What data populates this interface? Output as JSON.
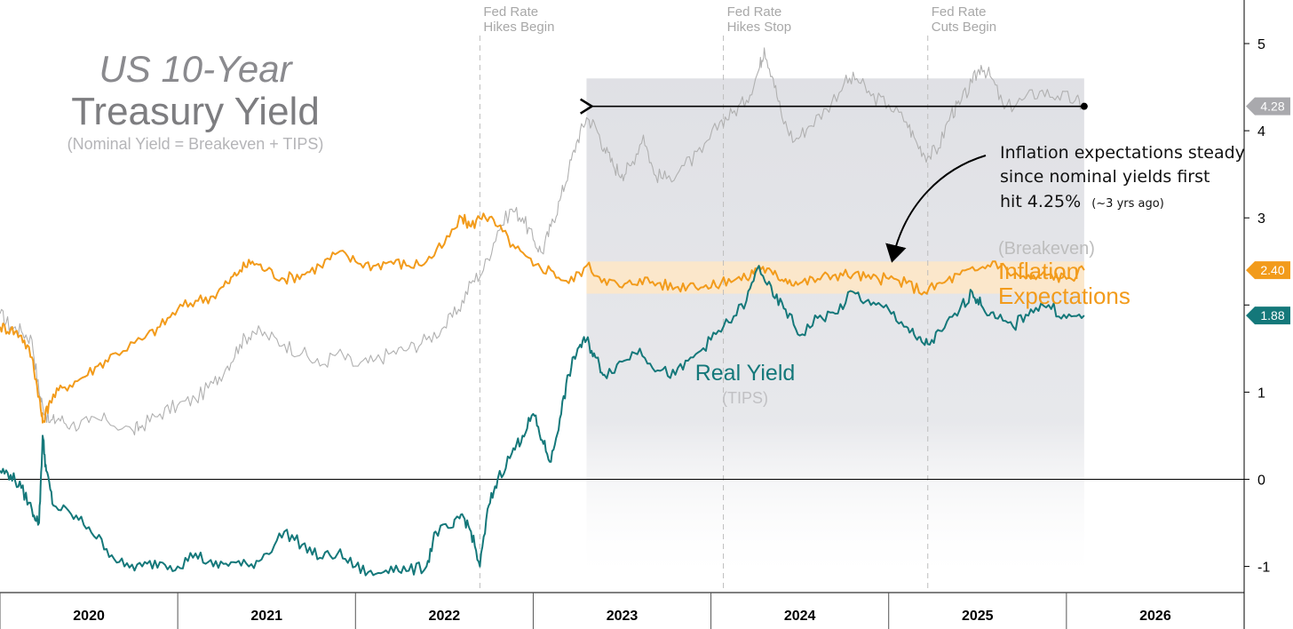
{
  "chart_data": {
    "type": "line",
    "title": "US 10-Year",
    "title_line2": "Treasury Yield",
    "subtitle": "(Nominal Yield = Breakeven + TIPS)",
    "x_tick_labels": [
      "2020",
      "2021",
      "2022",
      "2023",
      "2024",
      "2025",
      "2026"
    ],
    "x_range": [
      2019.5,
      2026.5
    ],
    "y_ticks": [
      -1,
      0,
      1,
      2,
      3,
      4,
      5
    ],
    "y_tick_labels": [
      "-1",
      "0",
      "1",
      "",
      "3",
      "4",
      "5"
    ],
    "ylim": [
      -1.3,
      5.5
    ],
    "zero_line": 0,
    "events": [
      {
        "label_line1": "Fed Rate",
        "label_line2": "Hikes Begin",
        "x": 2022.2
      },
      {
        "label_line1": "Fed Rate",
        "label_line2": "Hikes Stop",
        "x": 2023.57
      },
      {
        "label_line1": "Fed Rate",
        "label_line2": "Cuts Begin",
        "x": 2024.72
      }
    ],
    "shaded_region": {
      "x_start": 2022.8,
      "x_end": 2025.6
    },
    "breakeven_band": {
      "y_low": 2.13,
      "y_high": 2.5,
      "x_start": 2022.8,
      "x_end": 2025.6
    },
    "reference_arrow": {
      "y": 4.28,
      "x_start": 2025.6,
      "x_end": 2022.8
    },
    "annotation": {
      "line1": "Inflation expectations steady",
      "line2": "since nominal yields first",
      "line3": "hit 4.25%",
      "line3_small": "(~3 yrs ago)"
    },
    "series": [
      {
        "name": "Nominal Yield",
        "color": "#b0b0b0",
        "end_label": "4.28",
        "points": [
          [
            2019.5,
            1.9
          ],
          [
            2019.56,
            1.75
          ],
          [
            2019.62,
            1.7
          ],
          [
            2019.68,
            1.6
          ],
          [
            2019.72,
            1.0
          ],
          [
            2019.74,
            0.85
          ],
          [
            2019.78,
            0.65
          ],
          [
            2019.83,
            0.7
          ],
          [
            2019.9,
            0.62
          ],
          [
            2020.0,
            0.65
          ],
          [
            2020.1,
            0.68
          ],
          [
            2020.25,
            0.55
          ],
          [
            2020.3,
            0.62
          ],
          [
            2020.4,
            0.75
          ],
          [
            2020.5,
            0.85
          ],
          [
            2020.6,
            0.92
          ],
          [
            2020.7,
            1.1
          ],
          [
            2020.78,
            1.3
          ],
          [
            2020.85,
            1.55
          ],
          [
            2020.92,
            1.7
          ],
          [
            2021.0,
            1.65
          ],
          [
            2021.1,
            1.55
          ],
          [
            2021.2,
            1.45
          ],
          [
            2021.3,
            1.3
          ],
          [
            2021.4,
            1.45
          ],
          [
            2021.5,
            1.3
          ],
          [
            2021.6,
            1.35
          ],
          [
            2021.7,
            1.45
          ],
          [
            2021.8,
            1.5
          ],
          [
            2021.9,
            1.6
          ],
          [
            2022.0,
            1.75
          ],
          [
            2022.08,
            1.95
          ],
          [
            2022.15,
            2.25
          ],
          [
            2022.22,
            2.4
          ],
          [
            2022.3,
            2.85
          ],
          [
            2022.38,
            3.1
          ],
          [
            2022.44,
            3.0
          ],
          [
            2022.5,
            2.75
          ],
          [
            2022.55,
            2.6
          ],
          [
            2022.6,
            2.9
          ],
          [
            2022.65,
            3.2
          ],
          [
            2022.7,
            3.55
          ],
          [
            2022.75,
            3.9
          ],
          [
            2022.8,
            4.15
          ],
          [
            2022.85,
            4.05
          ],
          [
            2022.9,
            3.8
          ],
          [
            2022.95,
            3.6
          ],
          [
            2023.0,
            3.5
          ],
          [
            2023.05,
            3.6
          ],
          [
            2023.12,
            3.95
          ],
          [
            2023.18,
            3.5
          ],
          [
            2023.25,
            3.45
          ],
          [
            2023.35,
            3.6
          ],
          [
            2023.45,
            3.75
          ],
          [
            2023.55,
            4.1
          ],
          [
            2023.62,
            4.2
          ],
          [
            2023.7,
            4.35
          ],
          [
            2023.77,
            4.7
          ],
          [
            2023.8,
            4.95
          ],
          [
            2023.85,
            4.6
          ],
          [
            2023.9,
            4.15
          ],
          [
            2023.97,
            3.88
          ],
          [
            2024.05,
            4.05
          ],
          [
            2024.15,
            4.25
          ],
          [
            2024.25,
            4.55
          ],
          [
            2024.32,
            4.6
          ],
          [
            2024.4,
            4.4
          ],
          [
            2024.5,
            4.3
          ],
          [
            2024.6,
            4.1
          ],
          [
            2024.66,
            3.85
          ],
          [
            2024.72,
            3.7
          ],
          [
            2024.78,
            3.8
          ],
          [
            2024.85,
            4.2
          ],
          [
            2024.9,
            4.3
          ],
          [
            2024.97,
            4.55
          ],
          [
            2025.02,
            4.75
          ],
          [
            2025.08,
            4.6
          ],
          [
            2025.15,
            4.25
          ],
          [
            2025.25,
            4.35
          ],
          [
            2025.35,
            4.45
          ],
          [
            2025.45,
            4.4
          ],
          [
            2025.55,
            4.35
          ],
          [
            2025.6,
            4.28
          ]
        ]
      },
      {
        "name": "Inflation Expectations",
        "pre_label": "(Breakeven)",
        "label_line1": "Inflation",
        "label_line2": "Expectations",
        "color": "#f29b1b",
        "end_label": "2.40",
        "points": [
          [
            2019.5,
            1.75
          ],
          [
            2019.56,
            1.72
          ],
          [
            2019.62,
            1.65
          ],
          [
            2019.68,
            1.4
          ],
          [
            2019.72,
            0.95
          ],
          [
            2019.74,
            0.65
          ],
          [
            2019.78,
            0.9
          ],
          [
            2019.85,
            1.05
          ],
          [
            2019.95,
            1.15
          ],
          [
            2020.05,
            1.3
          ],
          [
            2020.15,
            1.45
          ],
          [
            2020.3,
            1.6
          ],
          [
            2020.4,
            1.75
          ],
          [
            2020.5,
            1.95
          ],
          [
            2020.6,
            2.05
          ],
          [
            2020.7,
            2.1
          ],
          [
            2020.78,
            2.25
          ],
          [
            2020.85,
            2.4
          ],
          [
            2020.92,
            2.5
          ],
          [
            2021.0,
            2.4
          ],
          [
            2021.1,
            2.3
          ],
          [
            2021.2,
            2.35
          ],
          [
            2021.3,
            2.45
          ],
          [
            2021.4,
            2.6
          ],
          [
            2021.5,
            2.5
          ],
          [
            2021.6,
            2.45
          ],
          [
            2021.7,
            2.5
          ],
          [
            2021.8,
            2.45
          ],
          [
            2021.9,
            2.5
          ],
          [
            2022.0,
            2.7
          ],
          [
            2022.1,
            3.0
          ],
          [
            2022.15,
            2.9
          ],
          [
            2022.22,
            3.05
          ],
          [
            2022.3,
            2.9
          ],
          [
            2022.4,
            2.65
          ],
          [
            2022.5,
            2.45
          ],
          [
            2022.6,
            2.4
          ],
          [
            2022.7,
            2.25
          ],
          [
            2022.8,
            2.45
          ],
          [
            2022.9,
            2.3
          ],
          [
            2023.0,
            2.2
          ],
          [
            2023.1,
            2.3
          ],
          [
            2023.2,
            2.25
          ],
          [
            2023.3,
            2.2
          ],
          [
            2023.4,
            2.25
          ],
          [
            2023.5,
            2.2
          ],
          [
            2023.6,
            2.3
          ],
          [
            2023.7,
            2.3
          ],
          [
            2023.77,
            2.45
          ],
          [
            2023.85,
            2.35
          ],
          [
            2023.92,
            2.3
          ],
          [
            2024.0,
            2.25
          ],
          [
            2024.1,
            2.3
          ],
          [
            2024.2,
            2.35
          ],
          [
            2024.3,
            2.35
          ],
          [
            2024.4,
            2.3
          ],
          [
            2024.5,
            2.3
          ],
          [
            2024.6,
            2.25
          ],
          [
            2024.7,
            2.15
          ],
          [
            2024.8,
            2.25
          ],
          [
            2024.9,
            2.35
          ],
          [
            2025.0,
            2.4
          ],
          [
            2025.1,
            2.5
          ],
          [
            2025.2,
            2.35
          ],
          [
            2025.3,
            2.3
          ],
          [
            2025.4,
            2.35
          ],
          [
            2025.5,
            2.3
          ],
          [
            2025.6,
            2.4
          ]
        ]
      },
      {
        "name": "Real Yield",
        "sub_label": "(TIPS)",
        "color": "#14787a",
        "end_label": "1.88",
        "points": [
          [
            2019.5,
            0.1
          ],
          [
            2019.56,
            0.05
          ],
          [
            2019.62,
            -0.1
          ],
          [
            2019.68,
            -0.35
          ],
          [
            2019.72,
            -0.5
          ],
          [
            2019.74,
            0.5
          ],
          [
            2019.76,
            0.1
          ],
          [
            2019.8,
            -0.3
          ],
          [
            2019.9,
            -0.4
          ],
          [
            2020.0,
            -0.55
          ],
          [
            2020.1,
            -0.8
          ],
          [
            2020.2,
            -1.0
          ],
          [
            2020.3,
            -1.0
          ],
          [
            2020.4,
            -0.95
          ],
          [
            2020.5,
            -1.0
          ],
          [
            2020.6,
            -0.85
          ],
          [
            2020.7,
            -1.0
          ],
          [
            2020.8,
            -0.95
          ],
          [
            2020.9,
            -1.0
          ],
          [
            2021.0,
            -0.85
          ],
          [
            2021.1,
            -0.6
          ],
          [
            2021.2,
            -0.75
          ],
          [
            2021.3,
            -0.9
          ],
          [
            2021.4,
            -0.85
          ],
          [
            2021.5,
            -1.0
          ],
          [
            2021.6,
            -1.1
          ],
          [
            2021.7,
            -1.0
          ],
          [
            2021.8,
            -1.05
          ],
          [
            2021.9,
            -1.0
          ],
          [
            2021.95,
            -0.6
          ],
          [
            2022.05,
            -0.55
          ],
          [
            2022.1,
            -0.4
          ],
          [
            2022.15,
            -0.6
          ],
          [
            2022.2,
            -1.0
          ],
          [
            2022.25,
            -0.3
          ],
          [
            2022.3,
            0.0
          ],
          [
            2022.38,
            0.3
          ],
          [
            2022.44,
            0.5
          ],
          [
            2022.5,
            0.75
          ],
          [
            2022.55,
            0.45
          ],
          [
            2022.6,
            0.2
          ],
          [
            2022.65,
            0.7
          ],
          [
            2022.7,
            1.2
          ],
          [
            2022.75,
            1.5
          ],
          [
            2022.8,
            1.6
          ],
          [
            2022.85,
            1.4
          ],
          [
            2022.9,
            1.2
          ],
          [
            2023.0,
            1.35
          ],
          [
            2023.1,
            1.5
          ],
          [
            2023.2,
            1.25
          ],
          [
            2023.3,
            1.2
          ],
          [
            2023.4,
            1.4
          ],
          [
            2023.5,
            1.6
          ],
          [
            2023.6,
            1.8
          ],
          [
            2023.7,
            2.05
          ],
          [
            2023.77,
            2.45
          ],
          [
            2023.85,
            2.1
          ],
          [
            2023.92,
            1.95
          ],
          [
            2024.0,
            1.65
          ],
          [
            2024.1,
            1.85
          ],
          [
            2024.2,
            1.9
          ],
          [
            2024.3,
            2.15
          ],
          [
            2024.4,
            2.0
          ],
          [
            2024.5,
            1.95
          ],
          [
            2024.6,
            1.75
          ],
          [
            2024.66,
            1.6
          ],
          [
            2024.72,
            1.55
          ],
          [
            2024.8,
            1.7
          ],
          [
            2024.9,
            1.95
          ],
          [
            2024.97,
            2.15
          ],
          [
            2025.02,
            2.0
          ],
          [
            2025.1,
            1.85
          ],
          [
            2025.2,
            1.75
          ],
          [
            2025.3,
            1.95
          ],
          [
            2025.4,
            2.0
          ],
          [
            2025.5,
            1.85
          ],
          [
            2025.6,
            1.88
          ]
        ]
      }
    ]
  }
}
